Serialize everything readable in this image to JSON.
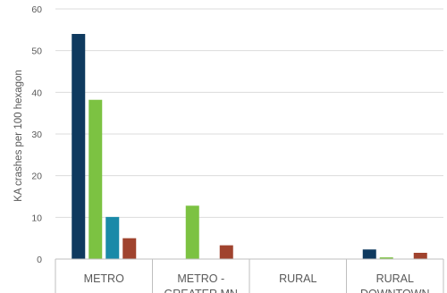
{
  "chart_data": {
    "type": "bar",
    "title": "",
    "xlabel": "",
    "ylabel": "KA crashes per 100 hexagon",
    "ylim": [
      0,
      60
    ],
    "yticks": [
      0,
      10,
      20,
      30,
      40,
      50,
      60
    ],
    "grid": true,
    "legend": "none",
    "categories": [
      {
        "lines": [
          "METRO"
        ]
      },
      {
        "lines": [
          "METRO -",
          "GREATER MN"
        ]
      },
      {
        "lines": [
          "RURAL"
        ]
      },
      {
        "lines": [
          "RURAL",
          "DOWNTOWN"
        ]
      }
    ],
    "series": [
      {
        "color": "#0f3a5f",
        "values": [
          54,
          0,
          0,
          2.3
        ]
      },
      {
        "color": "#7cc242",
        "values": [
          38.2,
          12.8,
          0,
          0.4
        ]
      },
      {
        "color": "#1a8aa8",
        "values": [
          10.1,
          0,
          0,
          0
        ]
      },
      {
        "color": "#a0432e",
        "values": [
          5,
          3.3,
          0,
          1.5
        ]
      }
    ],
    "colors": {
      "grid": "#dcdcdc",
      "axis": "#bfbfbf",
      "text": "#595959"
    }
  }
}
